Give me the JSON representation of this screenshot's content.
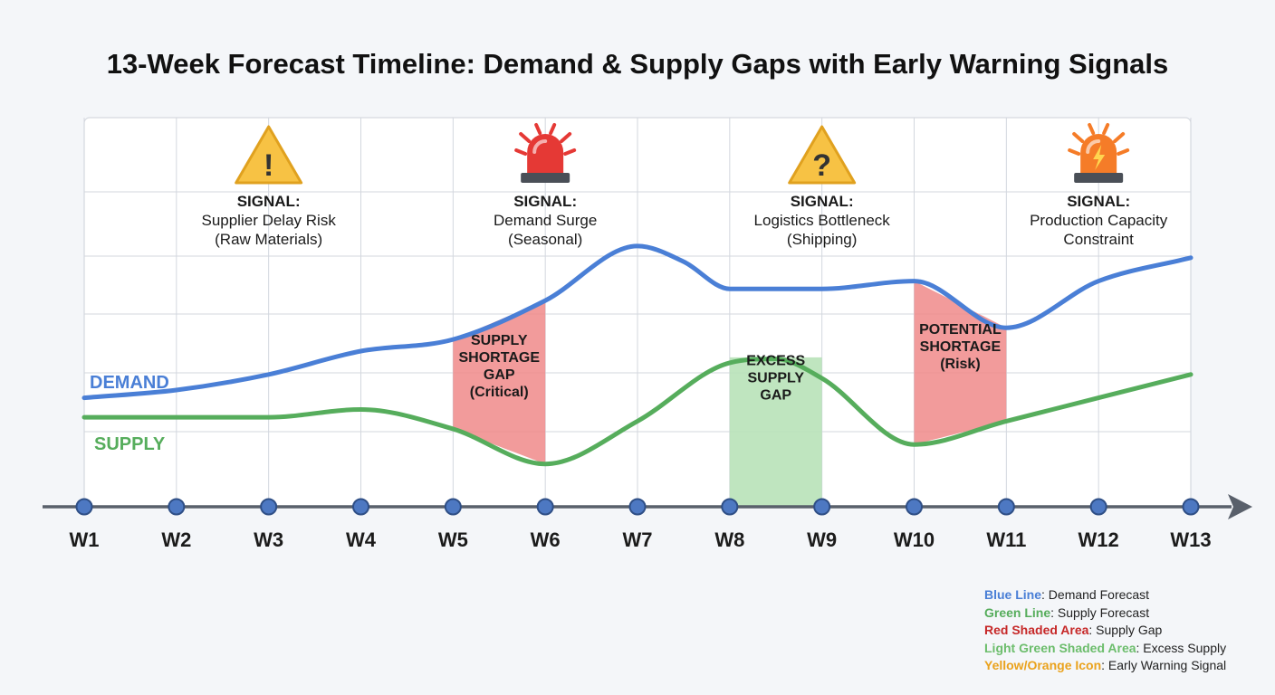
{
  "colors": {
    "demand": "#4a7fd6",
    "supply": "#56ad5c",
    "shortage": "#f08a8a",
    "excess": "#b8e2b8",
    "axis": "#59606b",
    "grid": "#d3d7de",
    "node": "#4d78c2",
    "warning_yellow": "#f7c244",
    "warning_red": "#e53935",
    "warning_orange": "#f57c28"
  },
  "legend": [
    {
      "key": "Blue Line",
      "text": ": Demand Forecast",
      "color": "#4a7fd6"
    },
    {
      "key": "Green Line",
      "text": ": Supply Forecast",
      "color": "#56ad5c"
    },
    {
      "key": "Red Shaded Area",
      "text": ": Supply Gap",
      "color": "#c62828"
    },
    {
      "key": "Light Green Shaded Area",
      "text": ": Excess Supply",
      "color": "#6cbd6c"
    },
    {
      "key": "Yellow/Orange Icon",
      "text": ": Early Warning Signal",
      "color": "#eaa21c"
    }
  ],
  "chart_data": {
    "type": "line",
    "title": "13-Week Forecast Timeline: Demand & Supply Gaps with Early Warning Signals",
    "categories": [
      "W1",
      "W2",
      "W3",
      "W4",
      "W5",
      "W6",
      "W7",
      "W8",
      "W9",
      "W10",
      "W11",
      "W12",
      "W13"
    ],
    "x": [
      1,
      2,
      3,
      4,
      5,
      6,
      7,
      8,
      9,
      10,
      11,
      12,
      13
    ],
    "ylim": [
      0,
      100
    ],
    "grid": true,
    "series": [
      {
        "name": "DEMAND",
        "key": "demand",
        "points": [
          [
            1,
            28
          ],
          [
            2,
            30
          ],
          [
            3,
            34
          ],
          [
            4,
            40
          ],
          [
            5,
            43
          ],
          [
            6,
            53
          ],
          [
            7,
            67
          ],
          [
            7.5,
            63
          ],
          [
            8,
            56
          ],
          [
            9,
            56
          ],
          [
            10,
            58
          ],
          [
            11,
            46
          ],
          [
            12,
            58
          ],
          [
            13,
            64
          ]
        ]
      },
      {
        "name": "SUPPLY",
        "key": "supply",
        "points": [
          [
            1,
            23
          ],
          [
            2,
            23
          ],
          [
            3,
            23
          ],
          [
            4,
            25
          ],
          [
            5,
            20
          ],
          [
            6,
            11
          ],
          [
            7,
            22
          ],
          [
            8,
            37
          ],
          [
            8.5,
            38
          ],
          [
            9,
            33
          ],
          [
            10,
            16
          ],
          [
            11,
            22
          ],
          [
            12,
            28
          ],
          [
            13,
            34
          ]
        ]
      }
    ],
    "gap_regions": [
      {
        "type": "shortage",
        "x_start": 5,
        "x_end": 6,
        "label": [
          "SUPPLY",
          "SHORTAGE",
          "GAP",
          "(Critical)"
        ],
        "label_x": 5.5,
        "label_y": 35
      },
      {
        "type": "excess",
        "x_start": 8,
        "x_end": 9,
        "label": [
          "EXCESS",
          "SUPPLY",
          "GAP"
        ],
        "label_x": 8.5,
        "label_y": 32
      },
      {
        "type": "shortage",
        "x_start": 10,
        "x_end": 11,
        "label": [
          "POTENTIAL",
          "SHORTAGE",
          "(Risk)"
        ],
        "label_x": 10.5,
        "label_y": 40
      }
    ],
    "signals": [
      {
        "week": 3,
        "icon": "warning-triangle-icon",
        "lines": [
          "SIGNAL:",
          "Supplier Delay Risk",
          "(Raw Materials)"
        ]
      },
      {
        "week": 6,
        "icon": "red-siren-icon",
        "lines": [
          "SIGNAL:",
          "Demand Surge",
          "(Seasonal)"
        ]
      },
      {
        "week": 9,
        "icon": "question-triangle-icon",
        "lines": [
          "SIGNAL:",
          "Logistics Bottleneck",
          "(Shipping)"
        ]
      },
      {
        "week": 12,
        "icon": "orange-siren-icon",
        "lines": [
          "SIGNAL:",
          "Production Capacity",
          "Constraint"
        ]
      }
    ]
  }
}
